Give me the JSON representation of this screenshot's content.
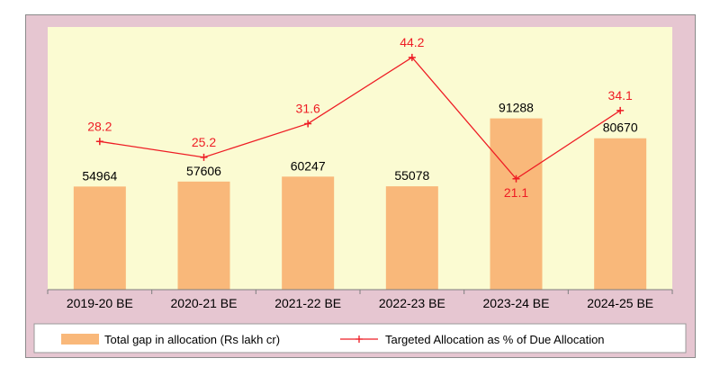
{
  "chart_data": {
    "type": "bar",
    "categories": [
      "2019-20 BE",
      "2020-21 BE",
      "2021-22 BE",
      "2022-23 BE",
      "2023-24 BE",
      "2024-25 BE"
    ],
    "series": [
      {
        "name": "Total gap in allocation (Rs lakh cr)",
        "type": "bar",
        "values": [
          54964,
          57606,
          60247,
          55078,
          91288,
          80670
        ],
        "value_labels": [
          "54964",
          "57606",
          "60247",
          "55078",
          "91288",
          "80670"
        ],
        "color": "#f9b87a"
      },
      {
        "name": "Targeted Allocation as % of Due Allocation",
        "type": "line",
        "values": [
          28.2,
          25.2,
          31.6,
          44.2,
          21.1,
          34.1
        ],
        "value_labels": [
          "28.2",
          "25.2",
          "31.6",
          "44.2",
          "21.1",
          "34.1"
        ],
        "color": "#ee1c24"
      }
    ],
    "title": "",
    "xlabel": "",
    "ylabel": "",
    "bar_ylim": [
      0,
      140000
    ],
    "line_ylim": [
      0,
      50
    ],
    "grid": false,
    "legend_position": "bottom",
    "plot_background": "#fbfbd2",
    "outer_background": "#e6c6d1"
  }
}
